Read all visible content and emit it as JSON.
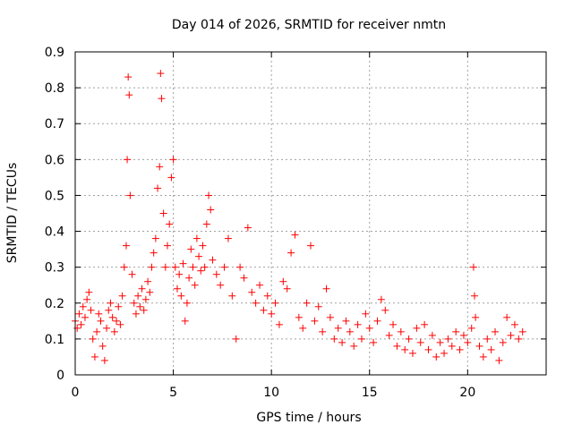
{
  "chart_data": {
    "type": "scatter",
    "title": "Day 014 of 2026, SRMTID for receiver nmtn",
    "xlabel": "GPS time / hours",
    "ylabel": "SRMTID / TECUs",
    "xlim": [
      0,
      24
    ],
    "ylim": [
      0,
      0.9
    ],
    "x_ticks": [
      "0",
      "5",
      "10",
      "15",
      "20"
    ],
    "x_tick_values": [
      0,
      5,
      10,
      15,
      20
    ],
    "y_ticks": [
      "0",
      "0.1",
      "0.2",
      "0.3",
      "0.4",
      "0.5",
      "0.6",
      "0.7",
      "0.8",
      "0.9"
    ],
    "y_tick_values": [
      0,
      0.1,
      0.2,
      0.3,
      0.4,
      0.5,
      0.6,
      0.7,
      0.8,
      0.9
    ],
    "grid": true,
    "marker": "plus",
    "series": [
      {
        "name": "SRMTID",
        "color": "#ff0000",
        "points": [
          [
            0.0,
            0.15
          ],
          [
            0.1,
            0.13
          ],
          [
            0.2,
            0.17
          ],
          [
            0.3,
            0.14
          ],
          [
            0.4,
            0.19
          ],
          [
            0.5,
            0.16
          ],
          [
            0.6,
            0.21
          ],
          [
            0.7,
            0.23
          ],
          [
            0.8,
            0.18
          ],
          [
            0.9,
            0.1
          ],
          [
            1.0,
            0.05
          ],
          [
            1.1,
            0.12
          ],
          [
            1.2,
            0.17
          ],
          [
            1.3,
            0.15
          ],
          [
            1.4,
            0.08
          ],
          [
            1.5,
            0.04
          ],
          [
            1.6,
            0.13
          ],
          [
            1.7,
            0.18
          ],
          [
            1.8,
            0.2
          ],
          [
            1.9,
            0.16
          ],
          [
            2.0,
            0.12
          ],
          [
            2.1,
            0.15
          ],
          [
            2.2,
            0.19
          ],
          [
            2.3,
            0.14
          ],
          [
            2.4,
            0.22
          ],
          [
            2.5,
            0.3
          ],
          [
            2.6,
            0.36
          ],
          [
            2.65,
            0.6
          ],
          [
            2.7,
            0.83
          ],
          [
            2.75,
            0.78
          ],
          [
            2.8,
            0.5
          ],
          [
            2.9,
            0.28
          ],
          [
            3.0,
            0.2
          ],
          [
            3.1,
            0.17
          ],
          [
            3.2,
            0.22
          ],
          [
            3.3,
            0.19
          ],
          [
            3.4,
            0.24
          ],
          [
            3.5,
            0.18
          ],
          [
            3.6,
            0.21
          ],
          [
            3.7,
            0.26
          ],
          [
            3.8,
            0.23
          ],
          [
            3.9,
            0.3
          ],
          [
            4.0,
            0.34
          ],
          [
            4.1,
            0.38
          ],
          [
            4.2,
            0.52
          ],
          [
            4.3,
            0.58
          ],
          [
            4.35,
            0.84
          ],
          [
            4.4,
            0.77
          ],
          [
            4.5,
            0.45
          ],
          [
            4.6,
            0.3
          ],
          [
            4.7,
            0.36
          ],
          [
            4.8,
            0.42
          ],
          [
            4.9,
            0.55
          ],
          [
            5.0,
            0.6
          ],
          [
            5.1,
            0.3
          ],
          [
            5.2,
            0.24
          ],
          [
            5.3,
            0.28
          ],
          [
            5.4,
            0.22
          ],
          [
            5.5,
            0.31
          ],
          [
            5.6,
            0.15
          ],
          [
            5.7,
            0.2
          ],
          [
            5.8,
            0.27
          ],
          [
            5.9,
            0.35
          ],
          [
            6.0,
            0.3
          ],
          [
            6.1,
            0.25
          ],
          [
            6.2,
            0.38
          ],
          [
            6.3,
            0.33
          ],
          [
            6.4,
            0.29
          ],
          [
            6.5,
            0.36
          ],
          [
            6.6,
            0.3
          ],
          [
            6.7,
            0.42
          ],
          [
            6.8,
            0.5
          ],
          [
            6.9,
            0.46
          ],
          [
            7.0,
            0.32
          ],
          [
            7.2,
            0.28
          ],
          [
            7.4,
            0.25
          ],
          [
            7.6,
            0.3
          ],
          [
            7.8,
            0.38
          ],
          [
            8.0,
            0.22
          ],
          [
            8.2,
            0.1
          ],
          [
            8.4,
            0.3
          ],
          [
            8.6,
            0.27
          ],
          [
            8.8,
            0.41
          ],
          [
            9.0,
            0.23
          ],
          [
            9.2,
            0.2
          ],
          [
            9.4,
            0.25
          ],
          [
            9.6,
            0.18
          ],
          [
            9.8,
            0.22
          ],
          [
            10.0,
            0.17
          ],
          [
            10.2,
            0.2
          ],
          [
            10.4,
            0.14
          ],
          [
            10.6,
            0.26
          ],
          [
            10.8,
            0.24
          ],
          [
            11.0,
            0.34
          ],
          [
            11.2,
            0.39
          ],
          [
            11.4,
            0.16
          ],
          [
            11.6,
            0.13
          ],
          [
            11.8,
            0.2
          ],
          [
            12.0,
            0.36
          ],
          [
            12.2,
            0.15
          ],
          [
            12.4,
            0.19
          ],
          [
            12.6,
            0.12
          ],
          [
            12.8,
            0.24
          ],
          [
            13.0,
            0.16
          ],
          [
            13.2,
            0.1
          ],
          [
            13.4,
            0.13
          ],
          [
            13.6,
            0.09
          ],
          [
            13.8,
            0.15
          ],
          [
            14.0,
            0.12
          ],
          [
            14.2,
            0.08
          ],
          [
            14.4,
            0.14
          ],
          [
            14.6,
            0.1
          ],
          [
            14.8,
            0.17
          ],
          [
            15.0,
            0.13
          ],
          [
            15.2,
            0.09
          ],
          [
            15.4,
            0.15
          ],
          [
            15.6,
            0.21
          ],
          [
            15.8,
            0.18
          ],
          [
            16.0,
            0.11
          ],
          [
            16.2,
            0.14
          ],
          [
            16.4,
            0.08
          ],
          [
            16.6,
            0.12
          ],
          [
            16.8,
            0.07
          ],
          [
            17.0,
            0.1
          ],
          [
            17.2,
            0.06
          ],
          [
            17.4,
            0.13
          ],
          [
            17.6,
            0.09
          ],
          [
            17.8,
            0.14
          ],
          [
            18.0,
            0.07
          ],
          [
            18.2,
            0.11
          ],
          [
            18.4,
            0.05
          ],
          [
            18.6,
            0.09
          ],
          [
            18.8,
            0.06
          ],
          [
            19.0,
            0.1
          ],
          [
            19.2,
            0.08
          ],
          [
            19.4,
            0.12
          ],
          [
            19.6,
            0.07
          ],
          [
            19.8,
            0.11
          ],
          [
            20.0,
            0.09
          ],
          [
            20.2,
            0.13
          ],
          [
            20.3,
            0.3
          ],
          [
            20.35,
            0.22
          ],
          [
            20.4,
            0.16
          ],
          [
            20.6,
            0.08
          ],
          [
            20.8,
            0.05
          ],
          [
            21.0,
            0.1
          ],
          [
            21.2,
            0.07
          ],
          [
            21.4,
            0.12
          ],
          [
            21.6,
            0.04
          ],
          [
            21.8,
            0.09
          ],
          [
            22.0,
            0.16
          ],
          [
            22.2,
            0.11
          ],
          [
            22.4,
            0.14
          ],
          [
            22.6,
            0.1
          ],
          [
            22.8,
            0.12
          ]
        ]
      }
    ]
  }
}
